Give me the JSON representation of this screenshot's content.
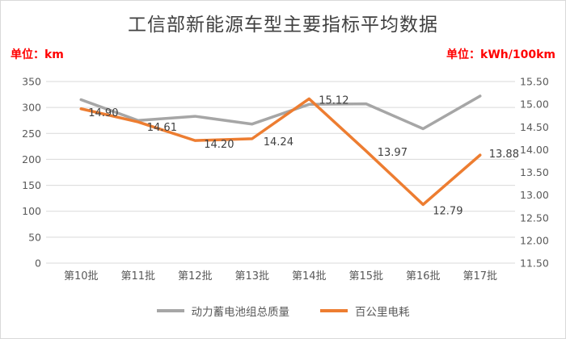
{
  "chart_data": {
    "type": "line",
    "title": "工信部新能源车型主要指标平均数据",
    "categories": [
      "第10批",
      "第11批",
      "第12批",
      "第13批",
      "第14批",
      "第15批",
      "第16批",
      "第17批"
    ],
    "series": [
      {
        "name": "动力蓄电池组总质量",
        "axis": "left",
        "color": "#a6a6a6",
        "values": [
          315,
          275,
          283,
          268,
          306,
          307,
          259,
          322
        ]
      },
      {
        "name": "百公里电耗",
        "axis": "right",
        "color": "#ed7d31",
        "values": [
          14.9,
          14.61,
          14.2,
          14.24,
          15.12,
          13.97,
          12.79,
          13.88
        ],
        "point_labels": [
          "14.90",
          "14.61",
          "14.20",
          "14.24",
          "15.12",
          "13.97",
          "12.79",
          "13.88"
        ]
      }
    ],
    "left_axis": {
      "unit_label": "单位：km",
      "min": 0,
      "max": 350,
      "step": 50
    },
    "right_axis": {
      "unit_label": "单位：kWh/100km",
      "min": 11.5,
      "max": 15.5,
      "step": 0.5
    },
    "grid": true,
    "legend_position": "bottom",
    "colors": {
      "grid": "#d9d9d9",
      "unit_label": "#ff0000",
      "title": "#404040"
    }
  }
}
